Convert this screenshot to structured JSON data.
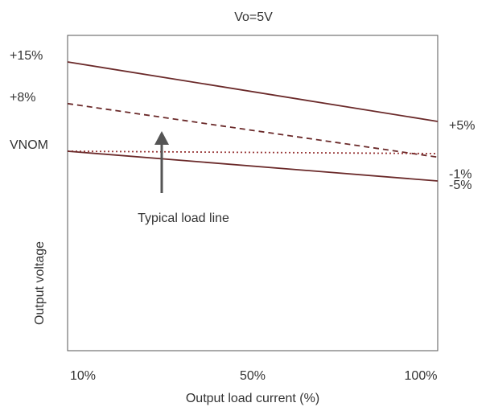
{
  "chart_data": {
    "type": "line",
    "title": "Vo=5V",
    "xlabel": "Output load current (%)",
    "ylabel": "Output voltage",
    "x_tick_labels": [
      "10%",
      "50%",
      "100%"
    ],
    "xlim": [
      10,
      100
    ],
    "ylim": [
      -15,
      20
    ],
    "left_labels": [
      {
        "text": "+15%",
        "value": 15
      },
      {
        "text": "+8%",
        "value": 8
      },
      {
        "text": "VNOM",
        "value": 0
      }
    ],
    "right_labels": [
      {
        "text": "+5%",
        "value": 5
      },
      {
        "text": "-1%",
        "value": -1
      },
      {
        "text": "-5%",
        "value": -5
      }
    ],
    "series": [
      {
        "style": "solid",
        "color": "#6b2a2a",
        "x": [
          10,
          100
        ],
        "y": [
          15,
          5
        ]
      },
      {
        "style": "dashed",
        "color": "#6b2a2a",
        "x": [
          10,
          100
        ],
        "y": [
          8,
          -1
        ]
      },
      {
        "style": "dotted",
        "color": "#9a3b3b",
        "x": [
          10,
          100
        ],
        "y": [
          0,
          -0.4
        ]
      },
      {
        "style": "solid",
        "color": "#6b2a2a",
        "x": [
          10,
          100
        ],
        "y": [
          0,
          -5
        ]
      }
    ],
    "annotation": {
      "text": "Typical load line",
      "arrow_color": "#555555"
    },
    "grid": false,
    "legend": "none"
  }
}
